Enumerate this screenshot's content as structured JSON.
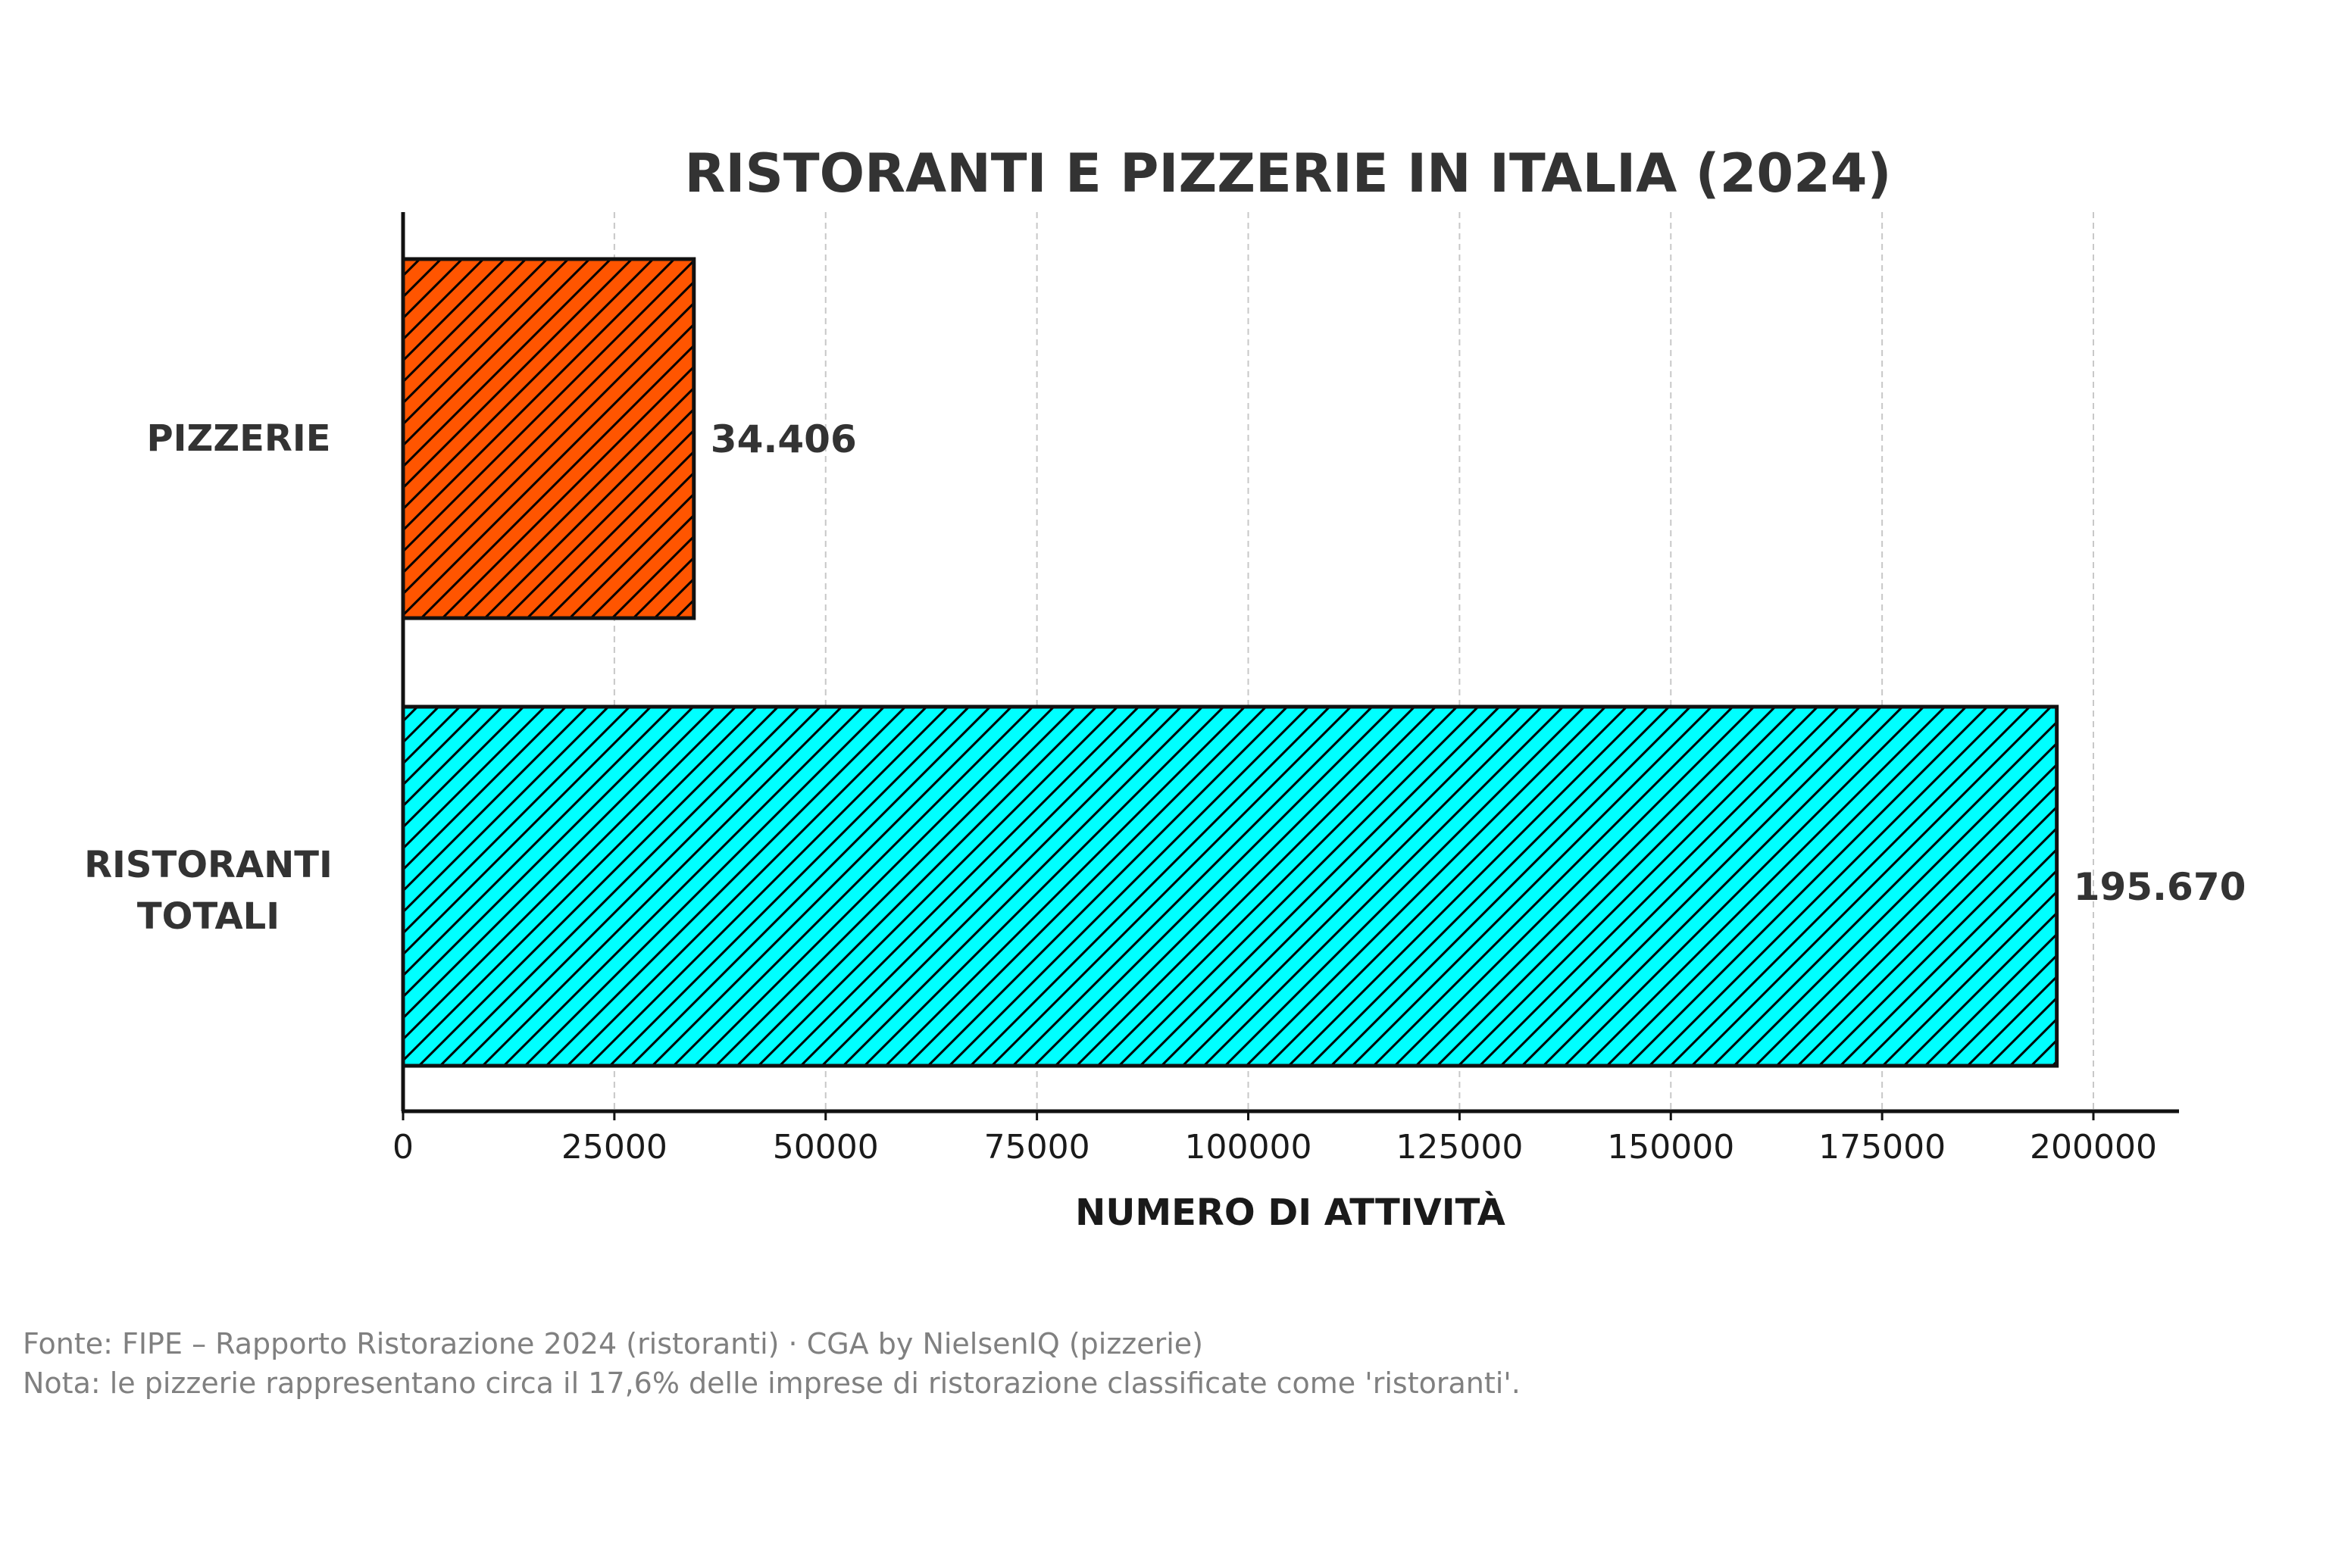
{
  "chart_data": {
    "type": "bar",
    "orientation": "horizontal",
    "title": "RISTORANTI E PIZZERIE IN ITALIA (2024)",
    "xlabel": "NUMERO DI ATTIVITÀ",
    "ylabel": "",
    "xlim": [
      0,
      210000
    ],
    "xticks": [
      0,
      25000,
      50000,
      75000,
      100000,
      125000,
      150000,
      175000,
      200000
    ],
    "grid": "x-dashed",
    "legend": "none",
    "categories": [
      {
        "label_lines": [
          "PIZZERIE"
        ],
        "value": 34406,
        "value_label": "34.406",
        "color": "#FF5500",
        "hatch": "diagonal"
      },
      {
        "label_lines": [
          "RISTORANTI",
          "TOTALI"
        ],
        "value": 195670,
        "value_label": "195.670",
        "color": "#00FFFF",
        "hatch": "diagonal"
      }
    ]
  },
  "footnotes": {
    "source": "Fonte: FIPE – Rapporto Ristorazione 2024 (ristoranti) · CGA by NielsenIQ (pizzerie)",
    "note": "Nota: le pizzerie rappresentano circa il 17,6% delle imprese di ristorazione classificate come 'ristoranti'."
  }
}
